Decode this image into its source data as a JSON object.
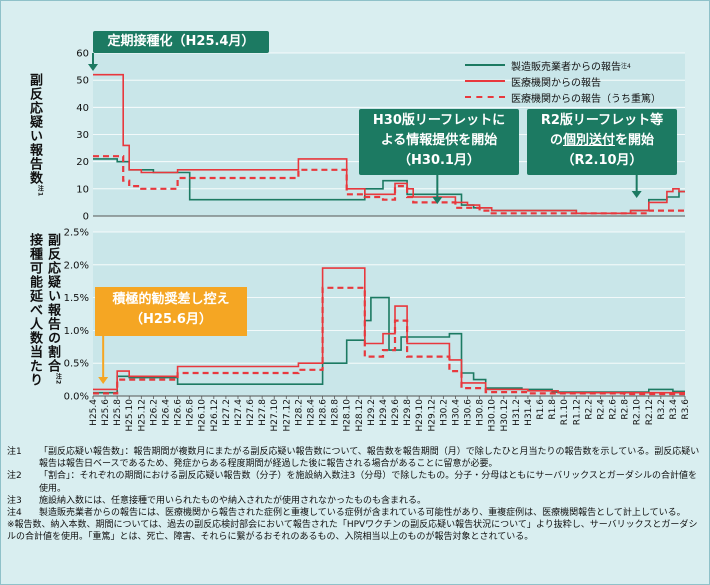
{
  "top_chart": {
    "y_title": "副反応疑い報告数",
    "y_title_note": "注1",
    "y_ticks": [
      "0",
      "10",
      "20",
      "30",
      "40",
      "50",
      "60"
    ]
  },
  "bottom_chart": {
    "y_title_line1": "副反応疑い報告の割合",
    "y_title_note": "注2",
    "y_title_line2": "接種可能延べ人数当たり",
    "y_ticks": [
      "0.0%",
      "0.5%",
      "1.0%",
      "1.5%",
      "2.0%",
      "2.5%"
    ]
  },
  "x_labels": [
    "H25.4",
    "H25.6",
    "H25.8",
    "H25.10",
    "H25.12",
    "H26.2",
    "H26.4",
    "H26.6",
    "H26.8",
    "H26.10",
    "H26.12",
    "H27.2",
    "H27.4",
    "H27.6",
    "H27.8",
    "H27.10",
    "H27.12",
    "H28.2",
    "H28.4",
    "H28.6",
    "H28.8",
    "H28.10",
    "H28.12",
    "H29.2",
    "H29.4",
    "H29.6",
    "H29.8",
    "H29.10",
    "H29.12",
    "H30.2",
    "H30.4",
    "H30.6",
    "H30.8",
    "H30.10",
    "H30.12",
    "H31.2",
    "H31.4",
    "R1.6",
    "R1.8",
    "R1.10",
    "R1.12",
    "R2.2",
    "R2.4",
    "R2.6",
    "R2.8",
    "R2.10",
    "R2.12",
    "R3.2",
    "R3.4",
    "R3.6"
  ],
  "legend": {
    "mfr": "製造販売業者からの報告",
    "mfr_note": "注4",
    "med": "医療機関からの報告",
    "med_serious": "医療機関からの報告（うち重篤）"
  },
  "callouts": {
    "routine": "定期接種化（H25.4月）",
    "h30_line1": "H30版リーフレットに",
    "h30_line2": "よる情報提供を開始",
    "h30_line3": "（H30.1月）",
    "r2_line1": "R2版リーフレット等",
    "r2_line2_pre": "の",
    "r2_line2_ul": "個別送付",
    "r2_line2_post": "を開始",
    "r2_line3": "（R2.10月）",
    "suspend_line1": "積極的勧奨差し控え",
    "suspend_line2": "（H25.6月）"
  },
  "notes": [
    {
      "label": "注1",
      "text": "「副反応疑い報告数」：報告期間が複数月にまたがる副反応疑い報告数について、報告数を報告期間（月）で除したひと月当たりの報告数を示している。副反応疑い報告は報告日ベースであるため、発症からある程度期間が経過した後に報告される場合があることに留意が必要。"
    },
    {
      "label": "注2",
      "text": "「割合」：それぞれの期間における副反応疑い報告数（分子）を施設納入数注3（分母）で除したもの。分子・分母はともにサーバリックスとガーダシルの合計値を使用。"
    },
    {
      "label": "注3",
      "text": "施設納入数には、任意接種で用いられたものや納入されたが使用されなかったものも含まれる。"
    },
    {
      "label": "注4",
      "text": "製造販売業者からの報告には、医療機関から報告された症例と重複している症例が含まれている可能性があり、重複症例は、医療機関報告として計上している。"
    },
    {
      "label": "",
      "text": "※報告数、納入本数、期間については、過去の副反応検討部会において報告された「HPVワクチンの副反応疑い報告状況について」より抜粋し、サーバリックスとガーダシルの合計値を使用。「重篤」とは、死亡、障害、それらに繋がるおそれのあるもの、入院相当以上のものが報告対象とされている。"
    }
  ],
  "colors": {
    "mfr": "#1c7a62",
    "med": "#e8383d",
    "med_serious": "#e8383d",
    "plot_bg": "#c9e6e9",
    "outer_bg": "#d9eef0"
  },
  "chart_data": [
    {
      "type": "line",
      "title": "",
      "ylabel": "副反応疑い報告数",
      "ylim": [
        0,
        60
      ],
      "x_unit": "month index from H25.4 (0 = H25.4 … 98 = R3.6)",
      "series": [
        {
          "name": "製造販売業者からの報告",
          "style": "step",
          "points": [
            [
              0,
              21
            ],
            [
              4,
              20
            ],
            [
              6,
              17
            ],
            [
              10,
              16
            ],
            [
              16,
              6
            ],
            [
              35,
              6
            ],
            [
              42,
              6
            ],
            [
              45,
              10
            ],
            [
              47,
              10
            ],
            [
              48,
              13
            ],
            [
              51,
              13
            ],
            [
              52,
              8
            ],
            [
              53,
              8
            ],
            [
              55,
              8
            ],
            [
              56,
              8
            ],
            [
              61,
              4
            ],
            [
              63,
              3
            ],
            [
              65,
              3
            ],
            [
              66,
              2
            ],
            [
              71,
              2
            ],
            [
              76,
              2
            ],
            [
              80,
              1
            ],
            [
              86,
              1
            ],
            [
              89,
              2
            ],
            [
              92,
              6
            ],
            [
              95,
              7
            ],
            [
              97,
              9
            ],
            [
              98,
              9
            ]
          ]
        },
        {
          "name": "医療機関からの報告",
          "style": "step",
          "points": [
            [
              0,
              52
            ],
            [
              4,
              52
            ],
            [
              5,
              26
            ],
            [
              6,
              17
            ],
            [
              8,
              16
            ],
            [
              10,
              16
            ],
            [
              14,
              17
            ],
            [
              26,
              17
            ],
            [
              34,
              21
            ],
            [
              40,
              21
            ],
            [
              42,
              10
            ],
            [
              45,
              8
            ],
            [
              48,
              8
            ],
            [
              50,
              12
            ],
            [
              52,
              10
            ],
            [
              53,
              7
            ],
            [
              58,
              7
            ],
            [
              60,
              5
            ],
            [
              62,
              4
            ],
            [
              64,
              3
            ],
            [
              66,
              2
            ],
            [
              70,
              2
            ],
            [
              76,
              2
            ],
            [
              80,
              1
            ],
            [
              86,
              1
            ],
            [
              89,
              2
            ],
            [
              92,
              5
            ],
            [
              95,
              9
            ],
            [
              96,
              10
            ],
            [
              97,
              9
            ],
            [
              98,
              9
            ]
          ]
        },
        {
          "name": "医療機関からの報告（うち重篤）",
          "style": "step",
          "points": [
            [
              0,
              22
            ],
            [
              4,
              22
            ],
            [
              5,
              13
            ],
            [
              6,
              11
            ],
            [
              8,
              10
            ],
            [
              10,
              10
            ],
            [
              14,
              14
            ],
            [
              26,
              14
            ],
            [
              34,
              17
            ],
            [
              40,
              17
            ],
            [
              42,
              8
            ],
            [
              45,
              7
            ],
            [
              48,
              6
            ],
            [
              50,
              11
            ],
            [
              52,
              7
            ],
            [
              53,
              5
            ],
            [
              58,
              5
            ],
            [
              60,
              3
            ],
            [
              62,
              3
            ],
            [
              64,
              2
            ],
            [
              66,
              1
            ],
            [
              76,
              1
            ],
            [
              80,
              1
            ],
            [
              86,
              1
            ],
            [
              89,
              1
            ],
            [
              92,
              2
            ],
            [
              98,
              3
            ]
          ]
        }
      ]
    },
    {
      "type": "line",
      "title": "",
      "ylabel": "副反応疑い報告の割合（接種可能延べ人数当たり）",
      "ylim": [
        0,
        2.5
      ],
      "y_unit": "%",
      "x_unit": "month index from H25.4 (0 = H25.4 … 98 = R3.6)",
      "series": [
        {
          "name": "製造販売業者からの報告",
          "style": "step",
          "points": [
            [
              0,
              0.05
            ],
            [
              3,
              0.05
            ],
            [
              4,
              0.3
            ],
            [
              6,
              0.28
            ],
            [
              14,
              0.18
            ],
            [
              34,
              0.18
            ],
            [
              38,
              0.5
            ],
            [
              42,
              0.85
            ],
            [
              45,
              1.15
            ],
            [
              46,
              1.5
            ],
            [
              48,
              1.5
            ],
            [
              49,
              0.7
            ],
            [
              50,
              0.7
            ],
            [
              51,
              0.9
            ],
            [
              53,
              0.9
            ],
            [
              59,
              0.95
            ],
            [
              61,
              0.35
            ],
            [
              63,
              0.25
            ],
            [
              65,
              0.12
            ],
            [
              71,
              0.1
            ],
            [
              76,
              0.06
            ],
            [
              88,
              0.06
            ],
            [
              92,
              0.1
            ],
            [
              96,
              0.07
            ],
            [
              98,
              0.07
            ]
          ]
        },
        {
          "name": "医療機関からの報告",
          "style": "step",
          "points": [
            [
              0,
              0.1
            ],
            [
              3,
              0.1
            ],
            [
              4,
              0.38
            ],
            [
              6,
              0.3
            ],
            [
              10,
              0.3
            ],
            [
              14,
              0.45
            ],
            [
              30,
              0.45
            ],
            [
              34,
              0.5
            ],
            [
              38,
              1.95
            ],
            [
              42,
              1.95
            ],
            [
              45,
              0.8
            ],
            [
              48,
              0.95
            ],
            [
              50,
              1.37
            ],
            [
              51,
              1.37
            ],
            [
              52,
              0.8
            ],
            [
              55,
              0.8
            ],
            [
              59,
              0.55
            ],
            [
              61,
              0.2
            ],
            [
              63,
              0.2
            ],
            [
              65,
              0.1
            ],
            [
              72,
              0.08
            ],
            [
              77,
              0.05
            ],
            [
              88,
              0.05
            ],
            [
              92,
              0.05
            ],
            [
              98,
              0.05
            ]
          ]
        },
        {
          "name": "医療機関からの報告（うち重篤）",
          "style": "step",
          "points": [
            [
              0,
              0.04
            ],
            [
              3,
              0.04
            ],
            [
              4,
              0.25
            ],
            [
              6,
              0.25
            ],
            [
              10,
              0.25
            ],
            [
              14,
              0.35
            ],
            [
              30,
              0.35
            ],
            [
              34,
              0.4
            ],
            [
              38,
              1.65
            ],
            [
              42,
              1.65
            ],
            [
              45,
              0.6
            ],
            [
              48,
              0.7
            ],
            [
              50,
              1.15
            ],
            [
              51,
              1.15
            ],
            [
              52,
              0.6
            ],
            [
              55,
              0.6
            ],
            [
              59,
              0.38
            ],
            [
              61,
              0.12
            ],
            [
              63,
              0.12
            ],
            [
              65,
              0.06
            ],
            [
              72,
              0.04
            ],
            [
              77,
              0.04
            ],
            [
              88,
              0.03
            ],
            [
              92,
              0.03
            ],
            [
              98,
              0.03
            ]
          ]
        }
      ]
    }
  ]
}
